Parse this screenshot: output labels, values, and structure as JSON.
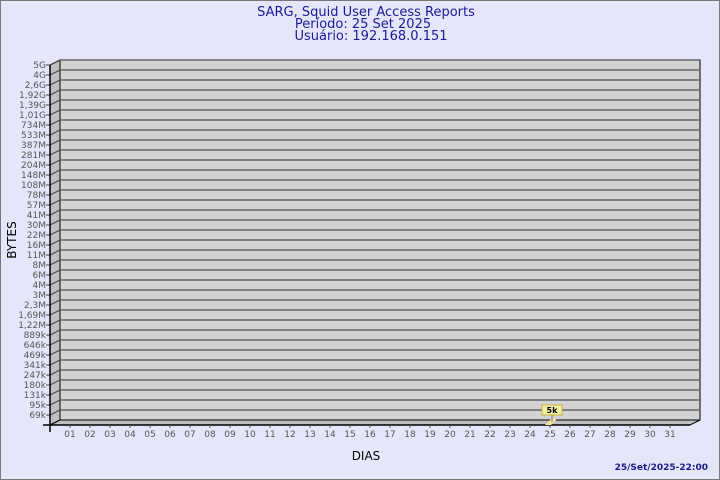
{
  "chart_data": {
    "type": "bar",
    "title": "SARG, Squid User Access Reports",
    "subtitle": [
      "Período: 25 Set 2025",
      "Usuário: 192.168.0.151"
    ],
    "xlabel": "DIAS",
    "ylabel": "BYTES",
    "y_scale": "log",
    "y_tick_labels": [
      "5G",
      "4G",
      "2,6G",
      "1,92G",
      "1,39G",
      "1,01G",
      "734M",
      "533M",
      "387M",
      "281M",
      "204M",
      "148M",
      "108M",
      "78M",
      "57M",
      "41M",
      "30M",
      "22M",
      "16M",
      "11M",
      "8M",
      "6M",
      "4M",
      "3M",
      "2,3M",
      "1,69M",
      "1,22M",
      "889k",
      "646k",
      "469k",
      "341k",
      "247k",
      "180k",
      "131k",
      "95k",
      "69k"
    ],
    "categories": [
      "01",
      "02",
      "03",
      "04",
      "05",
      "06",
      "07",
      "08",
      "09",
      "10",
      "11",
      "12",
      "13",
      "14",
      "15",
      "16",
      "17",
      "18",
      "19",
      "20",
      "21",
      "22",
      "23",
      "24",
      "25",
      "26",
      "27",
      "28",
      "29",
      "30",
      "31"
    ],
    "values": [
      {
        "day": "25",
        "bytes": 5000,
        "label": "5k"
      }
    ],
    "grid": true,
    "colors": {
      "background": "#e6e6fa",
      "plot": "#d3d3d3",
      "side": "#c0c0c0",
      "bar": "#f5e69a",
      "label_bg": "#f3f0a0",
      "title": "#1a1a9a"
    }
  },
  "footer": {
    "timestamp": "25/Set/2025-22:00"
  }
}
